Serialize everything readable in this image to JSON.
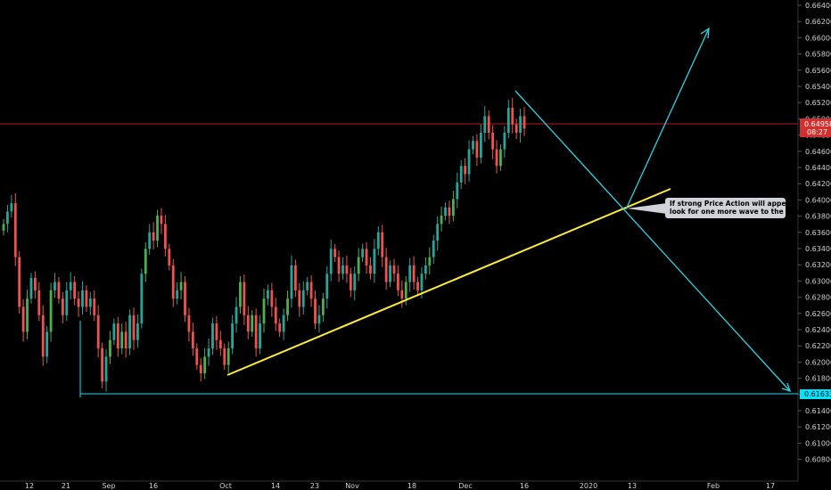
{
  "chart_data": {
    "type": "candlestick",
    "y_axis": {
      "ticks": [
        "0.66400",
        "0.66200",
        "0.66000",
        "0.65800",
        "0.65600",
        "0.65400",
        "0.65200",
        "0.65000",
        "0.64800",
        "0.64600",
        "0.64400",
        "0.64200",
        "0.64000",
        "0.63800",
        "0.63600",
        "0.63400",
        "0.63200",
        "0.63000",
        "0.62800",
        "0.62600",
        "0.62400",
        "0.62200",
        "0.62000",
        "0.61800",
        "0.61600",
        "0.61400",
        "0.61200",
        "0.61000",
        "0.60800"
      ],
      "range": [
        0.607,
        0.665
      ],
      "side": "right"
    },
    "x_axis": {
      "ticks": [
        "12",
        "21",
        "Sep",
        "16",
        "Oct",
        "14",
        "23",
        "Nov",
        "18",
        "Dec",
        "16",
        "2020",
        "13",
        "Feb",
        "17"
      ]
    },
    "price_tags": {
      "current_price": "0.64958",
      "countdown": "08:27",
      "support_level": "0.61633"
    },
    "levels": {
      "current_price": 0.64958,
      "support": 0.61633
    },
    "candles_close": [
      0.638,
      0.6395,
      0.6405,
      0.634,
      0.628,
      0.625,
      0.629,
      0.6315,
      0.63,
      0.627,
      0.622,
      0.625,
      0.63,
      0.631,
      0.629,
      0.627,
      0.63,
      0.631,
      0.629,
      0.628,
      0.63,
      0.628,
      0.629,
      0.627,
      0.623,
      0.619,
      0.622,
      0.624,
      0.626,
      0.623,
      0.625,
      0.623,
      0.627,
      0.624,
      0.626,
      0.632,
      0.635,
      0.637,
      0.636,
      0.639,
      0.638,
      0.635,
      0.633,
      0.629,
      0.63,
      0.631,
      0.627,
      0.625,
      0.623,
      0.621,
      0.62,
      0.622,
      0.623,
      0.626,
      0.624,
      0.623,
      0.621,
      0.623,
      0.626,
      0.628,
      0.631,
      0.627,
      0.625,
      0.627,
      0.623,
      0.626,
      0.629,
      0.63,
      0.628,
      0.626,
      0.625,
      0.627,
      0.629,
      0.633,
      0.63,
      0.628,
      0.63,
      0.631,
      0.629,
      0.626,
      0.627,
      0.629,
      0.632,
      0.635,
      0.634,
      0.632,
      0.633,
      0.632,
      0.63,
      0.632,
      0.634,
      0.635,
      0.633,
      0.632,
      0.635,
      0.637,
      0.634,
      0.631,
      0.633,
      0.632,
      0.63,
      0.629,
      0.631,
      0.633,
      0.631,
      0.63,
      0.632,
      0.633,
      0.634,
      0.636,
      0.638,
      0.639,
      0.64,
      0.639,
      0.641,
      0.643,
      0.645,
      0.644,
      0.647,
      0.648,
      0.646,
      0.649,
      0.651,
      0.649,
      0.647,
      0.645,
      0.647,
      0.649,
      0.652,
      0.65,
      0.649,
      0.651,
      0.6495
    ],
    "annotations": [
      {
        "lines": [
          "If strong Price Action will appear",
          "look for one more wave to the upside."
        ]
      }
    ],
    "colors": {
      "background": "#000000",
      "up": "#26a69a",
      "up_bright": "#4caf50",
      "down": "#ef5350",
      "support_line": "#00e5ff",
      "projection": "#29d4e6",
      "trendline": "#ffeb3b",
      "price_line": "#b71c1c",
      "axis_text": "#d0d0d0",
      "annotation_bg": "#cfd2d6"
    }
  }
}
